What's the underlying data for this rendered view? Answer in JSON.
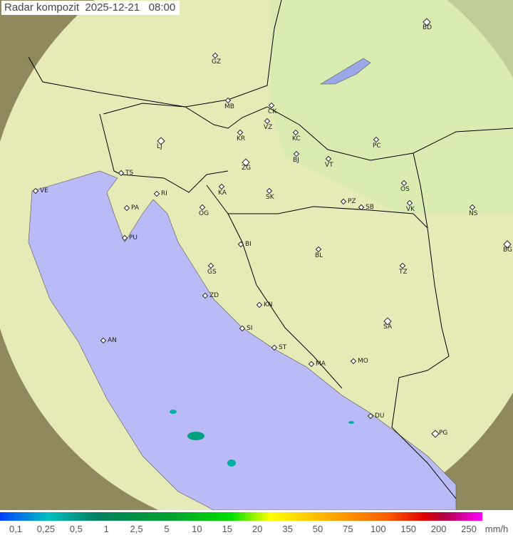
{
  "title": {
    "label": "Radar kompozit",
    "date": "2025-12-21",
    "time": "08:00"
  },
  "colors": {
    "sea": "#babaf6",
    "land_covered": "#e6eab6",
    "land_outside": "#8e8a5e",
    "border": "#000000"
  },
  "cities": [
    "GZ",
    "BD",
    "MB",
    "CK",
    "VZ",
    "KR",
    "KC",
    "LJ",
    "ZG",
    "BJ",
    "VT",
    "PC",
    "TS",
    "VE",
    "RI",
    "KA",
    "SK",
    "OS",
    "PA",
    "OG",
    "PZ",
    "SB",
    "VK",
    "NS",
    "PU",
    "BI",
    "BL",
    "BG",
    "GS",
    "TZ",
    "ZD",
    "KN",
    "SA",
    "AN",
    "SI",
    "ST",
    "MA",
    "MO",
    "DU",
    "PG"
  ],
  "legend": {
    "labels": [
      "0,1",
      "0,25",
      "0,5",
      "1",
      "2,5",
      "5",
      "10",
      "15",
      "20",
      "35",
      "50",
      "75",
      "100",
      "150",
      "200",
      "250"
    ],
    "unit": "mm/h"
  }
}
